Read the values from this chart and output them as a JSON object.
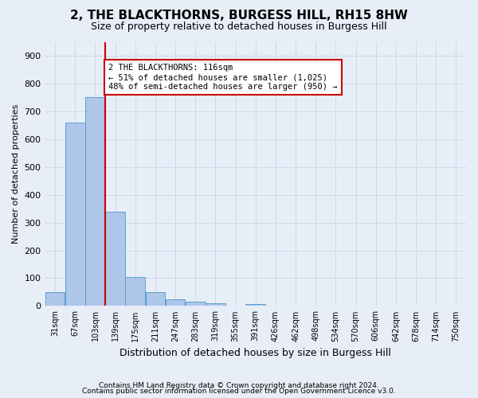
{
  "title": "2, THE BLACKTHORNS, BURGESS HILL, RH15 8HW",
  "subtitle": "Size of property relative to detached houses in Burgess Hill",
  "xlabel": "Distribution of detached houses by size in Burgess Hill",
  "ylabel": "Number of detached properties",
  "bar_color": "#aec6e8",
  "bar_edge_color": "#5a9fd4",
  "vline_color": "#cc0000",
  "vline_x_index": 2.5,
  "categories": [
    "31sqm",
    "67sqm",
    "103sqm",
    "139sqm",
    "175sqm",
    "211sqm",
    "247sqm",
    "283sqm",
    "319sqm",
    "355sqm",
    "391sqm",
    "426sqm",
    "462sqm",
    "498sqm",
    "534sqm",
    "570sqm",
    "606sqm",
    "642sqm",
    "678sqm",
    "714sqm",
    "750sqm"
  ],
  "values": [
    50,
    660,
    750,
    340,
    105,
    50,
    25,
    15,
    10,
    0,
    8,
    0,
    0,
    0,
    0,
    0,
    0,
    0,
    0,
    0,
    0
  ],
  "ylim": [
    0,
    950
  ],
  "yticks": [
    0,
    100,
    200,
    300,
    400,
    500,
    600,
    700,
    800,
    900
  ],
  "annotation_text": "2 THE BLACKTHORNS: 116sqm\n← 51% of detached houses are smaller (1,025)\n48% of semi-detached houses are larger (950) →",
  "annotation_box_color": "#ffffff",
  "annotation_box_edge": "#cc0000",
  "grid_color": "#d0d8e8",
  "background_color": "#e8eef7",
  "footer_line1": "Contains HM Land Registry data © Crown copyright and database right 2024.",
  "footer_line2": "Contains public sector information licensed under the Open Government Licence v3.0.",
  "title_fontsize": 11,
  "subtitle_fontsize": 9,
  "ylabel_fontsize": 8,
  "xlabel_fontsize": 9
}
